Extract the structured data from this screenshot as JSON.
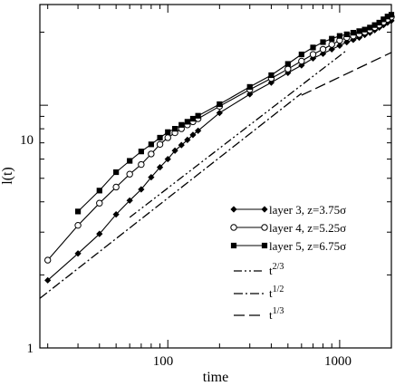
{
  "chart_data": {
    "type": "line",
    "xscale": "log",
    "yscale": "log",
    "xlim": [
      18,
      2000
    ],
    "ylim": [
      1,
      26
    ],
    "xlabel": "time",
    "ylabel": "l(t)",
    "xticks": [
      100,
      1000
    ],
    "xtick_labels": [
      "100",
      "1000"
    ],
    "yticks": [
      1,
      10
    ],
    "ytick_labels": [
      "1",
      "10"
    ],
    "grid": false,
    "legend_position": "lower-right",
    "series": [
      {
        "name": "layer 3, z=3.75σ",
        "marker": "filled-diamond",
        "color": "#000000",
        "x": [
          20,
          30,
          40,
          50,
          60,
          70,
          80,
          90,
          100,
          110,
          120,
          130,
          140,
          150,
          200,
          300,
          400,
          500,
          600,
          700,
          800,
          900,
          1000,
          1100,
          1200,
          1300,
          1400,
          1500,
          1600,
          1700,
          1800,
          1900,
          2000
        ],
        "y": [
          1.9,
          2.45,
          2.95,
          3.55,
          4.05,
          4.5,
          5.05,
          5.55,
          6.0,
          6.5,
          6.85,
          7.2,
          7.55,
          7.85,
          9.3,
          11.1,
          12.4,
          13.6,
          14.6,
          15.6,
          16.3,
          17.0,
          17.6,
          18.2,
          18.6,
          19.0,
          19.5,
          19.9,
          20.4,
          20.9,
          21.4,
          21.9,
          22.3
        ]
      },
      {
        "name": "layer 4, z=5.25σ",
        "marker": "open-circle",
        "color": "#000000",
        "x": [
          20,
          30,
          40,
          50,
          60,
          70,
          80,
          90,
          100,
          110,
          120,
          130,
          140,
          150,
          200,
          300,
          400,
          500,
          600,
          700,
          800,
          900,
          1000,
          1100,
          1200,
          1300,
          1400,
          1500,
          1600,
          1700,
          1800,
          1900,
          2000
        ],
        "y": [
          2.3,
          3.2,
          3.95,
          4.6,
          5.2,
          5.7,
          6.3,
          6.9,
          7.35,
          7.7,
          8.0,
          8.3,
          8.55,
          8.8,
          9.9,
          11.6,
          12.9,
          14.1,
          15.2,
          16.2,
          17.0,
          17.8,
          18.5,
          19.0,
          19.3,
          19.6,
          20.0,
          20.4,
          20.9,
          21.4,
          22.0,
          22.6,
          23.1
        ]
      },
      {
        "name": "layer 5, z=6.75σ",
        "marker": "filled-square",
        "color": "#000000",
        "x": [
          30,
          40,
          50,
          60,
          70,
          80,
          90,
          100,
          110,
          120,
          130,
          140,
          150,
          200,
          300,
          400,
          500,
          600,
          700,
          800,
          900,
          1000,
          1100,
          1200,
          1300,
          1400,
          1500,
          1600,
          1700,
          1800,
          1900,
          2000
        ],
        "y": [
          3.65,
          4.45,
          5.3,
          5.9,
          6.45,
          6.9,
          7.35,
          7.75,
          8.0,
          8.3,
          8.55,
          8.8,
          9.05,
          10.1,
          11.9,
          13.3,
          14.8,
          16.2,
          17.3,
          18.2,
          18.8,
          19.3,
          19.6,
          19.9,
          20.2,
          20.5,
          20.9,
          21.4,
          21.9,
          22.6,
          23.2,
          23.6
        ]
      }
    ],
    "reference_lines": [
      {
        "label_base": "t",
        "label_exp": "2/3",
        "style": "dash-dot-dot",
        "x": [
          60,
          1100
        ],
        "y": [
          3.45,
          16.85
        ]
      },
      {
        "label_base": "t",
        "label_exp": "1/2",
        "style": "dash-dot",
        "x": [
          18,
          600
        ],
        "y": [
          1.6,
          11.2
        ]
      },
      {
        "label_base": "t",
        "label_exp": "1/3",
        "style": "dashed",
        "x": [
          600,
          2000
        ],
        "y": [
          11.0,
          16.5
        ]
      }
    ]
  }
}
